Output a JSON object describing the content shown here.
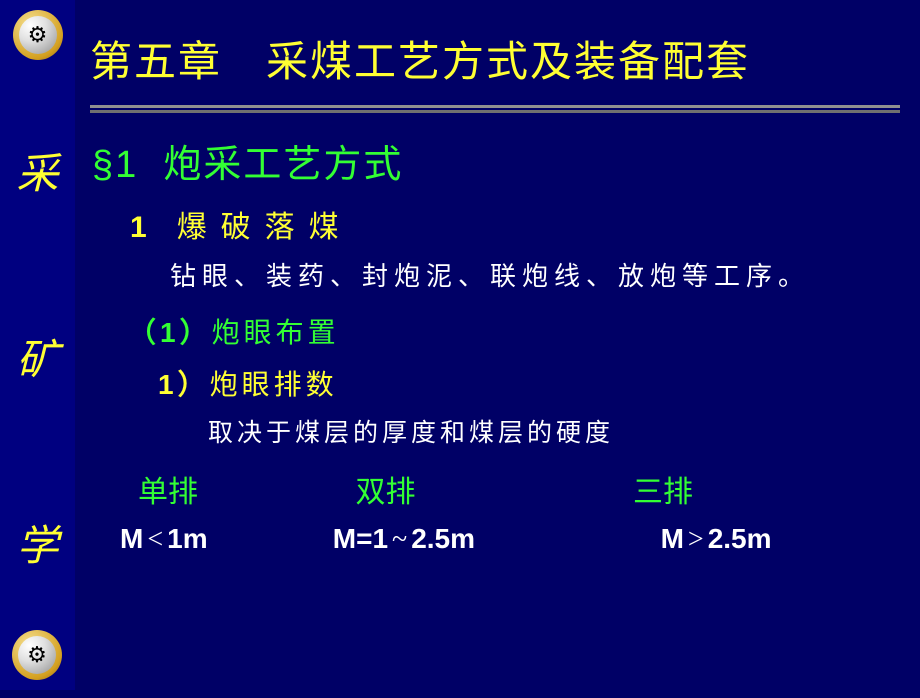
{
  "sidebar": {
    "chars": [
      "采",
      "矿",
      "学"
    ],
    "logo_glyph": "⚙"
  },
  "title": "第五章　采煤工艺方式及装备配套",
  "section": {
    "label": "§1",
    "text": "炮采工艺方式"
  },
  "item1": {
    "num": "1",
    "text": "爆破落煤"
  },
  "desc1": "钻眼、装药、封炮泥、联炮线、放炮等工序。",
  "item1_1": {
    "num": "（1）",
    "text": "炮眼布置"
  },
  "item1_1_1": {
    "num": "1）",
    "text": "炮眼排数"
  },
  "desc2": "取决于煤层的厚度和煤层的硬度",
  "table": {
    "headers": [
      "单排",
      "双排",
      "三排"
    ],
    "c1": {
      "a": "M",
      "op": "<",
      "b": "1m"
    },
    "c2": {
      "a": "M=1",
      "op": "~",
      "b": "2.5m"
    },
    "c3": {
      "a": "M",
      "op": ">",
      "b": "2.5m"
    }
  },
  "colors": {
    "bg": "#000066",
    "sidebar_bg": "#000080",
    "yellow": "#ffff33",
    "green": "#33ff33",
    "white": "#ffffff",
    "divider": "#808080"
  },
  "fontsize": {
    "title": 42,
    "section": 38,
    "sub1": 30,
    "body": 26,
    "sidebar_char": 42
  }
}
